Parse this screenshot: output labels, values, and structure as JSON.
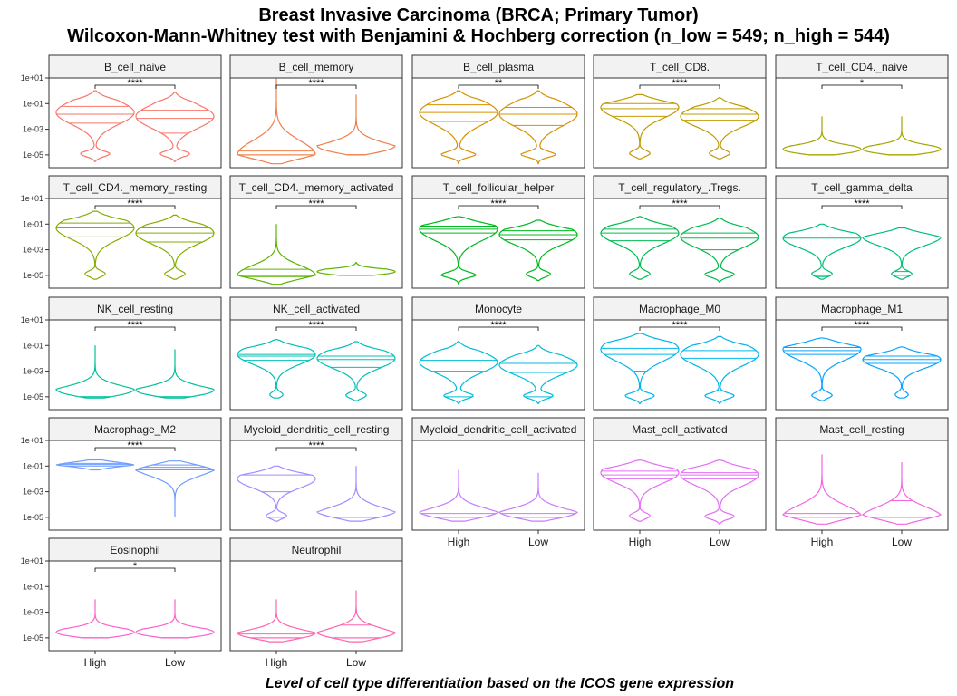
{
  "title_line1": "Breast Invasive Carcinoma (BRCA; Primary Tumor)",
  "title_line2": "Wilcoxon-Mann-Whitney test with Benjamini & Hochberg correction (n_low = 549; n_high = 544)",
  "x_axis_caption": "Level of cell type differentiation based on the ICOS gene expression",
  "chart_data": {
    "type": "violin",
    "title": "Breast Invasive Carcinoma (BRCA; Primary Tumor)",
    "subtitle": "Wilcoxon-Mann-Whitney test with Benjamini & Hochberg correction (n_low = 549; n_high = 544)",
    "xlabel": "Level of cell type differentiation based on the ICOS gene expression",
    "ylabel": "",
    "y_scale": "log10",
    "ylim": [
      1e-06,
      10
    ],
    "y_ticks": [
      10,
      0.1,
      0.001,
      1e-05
    ],
    "y_tick_labels": [
      "1e+01",
      "1e-01",
      "1e-03",
      "1e-05"
    ],
    "categories": [
      "High",
      "Low"
    ],
    "grid": false,
    "panels": [
      {
        "name": "B_cell_naive",
        "color": "#F8766D",
        "sig": "****",
        "high": {
          "min": 3e-06,
          "max": 1.0,
          "mode": 0.02,
          "q": [
            0.003,
            0.015,
            0.06
          ],
          "lowmode": 1e-05
        },
        "low": {
          "min": 3e-06,
          "max": 0.8,
          "mode": 0.01,
          "q": [
            0.0005,
            0.007,
            0.03
          ],
          "lowmode": 1e-05
        }
      },
      {
        "name": "B_cell_memory",
        "color": "#EF7F48",
        "sig": "****",
        "high": {
          "min": 2e-06,
          "max": 9.0,
          "mode": 1e-05,
          "q": [
            1e-05,
            1e-05,
            2e-05
          ],
          "lowmode": 1e-05
        },
        "low": {
          "min": 1e-05,
          "max": 0.5,
          "mode": 1e-05,
          "q": [
            1e-05,
            1e-05,
            1e-05
          ],
          "lowmode": 1e-05
        }
      },
      {
        "name": "B_cell_plasma",
        "color": "#D89000",
        "sig": "**",
        "high": {
          "min": 2e-06,
          "max": 1.0,
          "mode": 0.02,
          "q": [
            0.004,
            0.02,
            0.08
          ],
          "lowmode": 1e-05
        },
        "low": {
          "min": 2e-06,
          "max": 1.0,
          "mode": 0.015,
          "q": [
            0.002,
            0.015,
            0.05
          ],
          "lowmode": 1e-05
        }
      },
      {
        "name": "T_cell_CD8.",
        "color": "#BF9B00",
        "sig": "****",
        "high": {
          "min": 5e-06,
          "max": 0.5,
          "mode": 0.05,
          "q": [
            0.01,
            0.04,
            0.1
          ],
          "lowmode": 1e-05
        },
        "low": {
          "min": 5e-06,
          "max": 0.3,
          "mode": 0.01,
          "q": [
            0.005,
            0.015,
            0.04
          ],
          "lowmode": 1e-05
        }
      },
      {
        "name": "T_cell_CD4._naive",
        "color": "#A3A500",
        "sig": "*",
        "high": {
          "min": 1e-05,
          "max": 0.01,
          "mode": 1e-05,
          "q": [
            1e-05,
            1e-05,
            1e-05
          ],
          "lowmode": 1e-05
        },
        "low": {
          "min": 1e-05,
          "max": 0.01,
          "mode": 1e-05,
          "q": [
            1e-05,
            1e-05,
            1e-05
          ],
          "lowmode": 1e-05
        }
      },
      {
        "name": "T_cell_CD4._memory_resting",
        "color": "#85AD00",
        "sig": "****",
        "high": {
          "min": 5e-06,
          "max": 1.0,
          "mode": 0.05,
          "q": [
            0.01,
            0.05,
            0.12
          ],
          "lowmode": 1e-05
        },
        "low": {
          "min": 5e-06,
          "max": 0.5,
          "mode": 0.02,
          "q": [
            0.004,
            0.02,
            0.05
          ],
          "lowmode": 1e-05
        }
      },
      {
        "name": "T_cell_CD4._memory_activated",
        "color": "#5BB300",
        "sig": "****",
        "high": {
          "min": 2e-06,
          "max": 0.1,
          "mode": 1e-05,
          "q": [
            8e-06,
            1e-05,
            3e-05
          ],
          "lowmode": 1e-05
        },
        "low": {
          "min": 1e-05,
          "max": 0.0001,
          "mode": 1e-05,
          "q": [
            1e-05,
            1e-05,
            1e-05
          ],
          "lowmode": 1e-05
        }
      },
      {
        "name": "T_cell_follicular_helper",
        "color": "#00B81F",
        "sig": "****",
        "high": {
          "min": 2e-06,
          "max": 0.4,
          "mode": 0.04,
          "q": [
            0.02,
            0.04,
            0.07
          ],
          "lowmode": 1e-05
        },
        "low": {
          "min": 4e-06,
          "max": 0.2,
          "mode": 0.015,
          "q": [
            0.006,
            0.015,
            0.03
          ],
          "lowmode": 1e-05
        }
      },
      {
        "name": "T_cell_regulatory_.Tregs.",
        "color": "#00BB4E",
        "sig": "****",
        "high": {
          "min": 5e-06,
          "max": 0.4,
          "mode": 0.02,
          "q": [
            0.005,
            0.02,
            0.04
          ],
          "lowmode": 1e-05
        },
        "low": {
          "min": 3e-06,
          "max": 0.3,
          "mode": 0.01,
          "q": [
            0.001,
            0.008,
            0.02
          ],
          "lowmode": 1e-05
        }
      },
      {
        "name": "T_cell_gamma_delta",
        "color": "#00BF77",
        "sig": "****",
        "high": {
          "min": 5e-06,
          "max": 0.1,
          "mode": 0.008,
          "q": [
            8e-06,
            1e-05,
            0.008
          ],
          "lowmode": 1e-05
        },
        "low": {
          "min": 5e-06,
          "max": 0.05,
          "mode": 0.01,
          "q": [
            1e-05,
            1e-05,
            2e-05
          ],
          "lowmode": 1e-05
        }
      },
      {
        "name": "NK_cell_resting",
        "color": "#00C19A",
        "sig": "****",
        "high": {
          "min": 8e-06,
          "max": 0.1,
          "mode": 1e-05,
          "q": [
            1e-05,
            1e-05,
            1e-05
          ],
          "lowmode": 1e-05
        },
        "low": {
          "min": 8e-06,
          "max": 0.05,
          "mode": 1e-05,
          "q": [
            1e-05,
            1e-05,
            1e-05
          ],
          "lowmode": 1e-05
        }
      },
      {
        "name": "NK_cell_activated",
        "color": "#00C0B8",
        "sig": "****",
        "high": {
          "min": 8e-06,
          "max": 0.3,
          "mode": 0.02,
          "q": [
            0.007,
            0.015,
            0.02
          ],
          "lowmode": 1e-05
        },
        "low": {
          "min": 5e-06,
          "max": 0.2,
          "mode": 0.01,
          "q": [
            0.002,
            0.008,
            0.015
          ],
          "lowmode": 1e-05
        }
      },
      {
        "name": "Monocyte",
        "color": "#00BCD8",
        "sig": "****",
        "high": {
          "min": 3e-06,
          "max": 0.2,
          "mode": 0.005,
          "q": [
            1e-05,
            0.001,
            0.007
          ],
          "lowmode": 1e-05
        },
        "low": {
          "min": 3e-06,
          "max": 0.1,
          "mode": 0.003,
          "q": [
            1e-05,
            0.0008,
            0.004
          ],
          "lowmode": 1e-05
        }
      },
      {
        "name": "Macrophage_M0",
        "color": "#00B6EB",
        "sig": "****",
        "high": {
          "min": 3e-06,
          "max": 0.9,
          "mode": 0.05,
          "q": [
            0.001,
            0.02,
            0.06
          ],
          "lowmode": 1e-05
        },
        "low": {
          "min": 3e-06,
          "max": 0.5,
          "mode": 0.02,
          "q": [
            3e-05,
            0.01,
            0.04
          ],
          "lowmode": 1e-05
        }
      },
      {
        "name": "Macrophage_M1",
        "color": "#06A4FF",
        "sig": "****",
        "high": {
          "min": 5e-06,
          "max": 0.4,
          "mode": 0.05,
          "q": [
            0.02,
            0.04,
            0.07
          ],
          "lowmode": 1e-05
        },
        "low": {
          "min": 8e-06,
          "max": 0.08,
          "mode": 0.008,
          "q": [
            0.004,
            0.008,
            0.015
          ],
          "lowmode": 1e-05
        }
      },
      {
        "name": "Macrophage_M2",
        "color": "#6D9CFF",
        "sig": "****",
        "high": {
          "min": 0.05,
          "max": 0.3,
          "mode": 0.15,
          "q": [
            0.1,
            0.13,
            0.16
          ],
          "lowmode": 0.1
        },
        "low": {
          "min": 1e-05,
          "max": 0.25,
          "mode": 0.1,
          "q": [
            0.05,
            0.08,
            0.12
          ],
          "lowmode": 0.1
        }
      },
      {
        "name": "Myeloid_dendritic_cell_resting",
        "color": "#A58AFF",
        "sig": "****",
        "high": {
          "min": 5e-06,
          "max": 0.1,
          "mode": 0.01,
          "q": [
            1e-05,
            0.001,
            0.02
          ],
          "lowmode": 1e-05
        },
        "low": {
          "min": 5e-06,
          "max": 0.1,
          "mode": 1e-05,
          "q": [
            1e-05,
            1e-05,
            0.002
          ],
          "lowmode": 1e-05
        }
      },
      {
        "name": "Myeloid_dendritic_cell_activated",
        "color": "#C77CFF",
        "sig": "",
        "high": {
          "min": 5e-06,
          "max": 0.05,
          "mode": 1e-05,
          "q": [
            1e-05,
            1e-05,
            2e-05
          ],
          "lowmode": 1e-05
        },
        "low": {
          "min": 5e-06,
          "max": 0.03,
          "mode": 1e-05,
          "q": [
            1e-05,
            1e-05,
            2e-05
          ],
          "lowmode": 1e-05
        }
      },
      {
        "name": "Mast_cell_activated",
        "color": "#E36EF6",
        "sig": "",
        "high": {
          "min": 5e-06,
          "max": 0.3,
          "mode": 0.03,
          "q": [
            0.01,
            0.02,
            0.04
          ],
          "lowmode": 1e-05
        },
        "low": {
          "min": 3e-06,
          "max": 0.3,
          "mode": 0.02,
          "q": [
            0.01,
            0.02,
            0.03
          ],
          "lowmode": 1e-05
        }
      },
      {
        "name": "Mast_cell_resting",
        "color": "#F564E3",
        "sig": "",
        "high": {
          "min": 3e-06,
          "max": 0.8,
          "mode": 1e-05,
          "q": [
            1e-05,
            2e-05,
            0.01
          ],
          "lowmode": 1e-05
        },
        "low": {
          "min": 3e-06,
          "max": 0.2,
          "mode": 1e-05,
          "q": [
            1e-05,
            1e-05,
            0.0002
          ],
          "lowmode": 1e-05
        }
      },
      {
        "name": "Eosinophil",
        "color": "#FF61C9",
        "sig": "*",
        "high": {
          "min": 1e-05,
          "max": 0.01,
          "mode": 1e-05,
          "q": [
            1e-05,
            1e-05,
            1e-05
          ],
          "lowmode": 1e-05
        },
        "low": {
          "min": 1e-05,
          "max": 0.01,
          "mode": 1e-05,
          "q": [
            1e-05,
            1e-05,
            1e-05
          ],
          "lowmode": 1e-05
        }
      },
      {
        "name": "Neutrophil",
        "color": "#FF65AE",
        "sig": "",
        "high": {
          "min": 5e-06,
          "max": 0.01,
          "mode": 1e-05,
          "q": [
            1e-05,
            1e-05,
            2e-05
          ],
          "lowmode": 1e-05
        },
        "low": {
          "min": 5e-06,
          "max": 0.05,
          "mode": 1e-05,
          "q": [
            1e-05,
            1e-05,
            0.0001
          ],
          "lowmode": 1e-05
        }
      }
    ]
  }
}
